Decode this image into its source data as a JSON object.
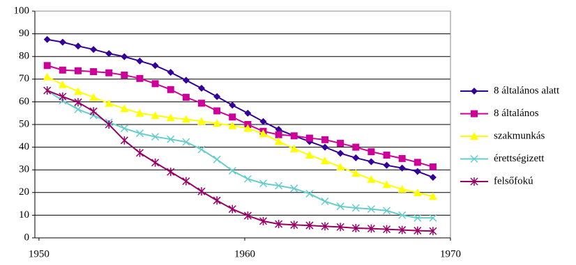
{
  "chart_data": {
    "type": "line",
    "x": [
      1950.4,
      1951.15,
      1951.9,
      1952.65,
      1953.4,
      1954.15,
      1954.9,
      1955.65,
      1956.4,
      1957.15,
      1957.9,
      1958.65,
      1959.4,
      1960.15,
      1960.9,
      1961.65,
      1962.4,
      1963.15,
      1963.9,
      1964.65,
      1965.4,
      1966.15,
      1966.9,
      1967.65,
      1968.4,
      1969.15
    ],
    "xlim": [
      1949.8,
      1970
    ],
    "xticks": [
      1950,
      1960,
      1970
    ],
    "ylim": [
      0,
      100
    ],
    "yticks": [
      0,
      10,
      20,
      30,
      40,
      50,
      60,
      70,
      80,
      90,
      100
    ],
    "grid": true,
    "legend": "right",
    "series": [
      {
        "name": "8 általános alatt",
        "color": "#330099",
        "marker": "diamond",
        "values": [
          87.5,
          86.3,
          84.6,
          83.1,
          81.3,
          79.9,
          78,
          76,
          73,
          69.5,
          66,
          62.3,
          58.5,
          55,
          51.3,
          47.8,
          45,
          42.5,
          40,
          37.3,
          35.3,
          33.6,
          32,
          30.8,
          29.3,
          26.7
        ]
      },
      {
        "name": "8 általános",
        "color": "#cc0099",
        "marker": "square",
        "values": [
          76,
          74,
          73.7,
          73.3,
          72.8,
          71.8,
          70.3,
          68,
          65.4,
          62,
          59.4,
          56,
          53.3,
          50,
          47,
          45.5,
          45,
          44,
          43.3,
          41.7,
          40,
          38,
          36.5,
          35,
          33.3,
          31.3
        ]
      },
      {
        "name": "szakmunkás",
        "color": "#ffff00",
        "marker": "triangle",
        "values": [
          71,
          67.6,
          64.6,
          62,
          59.3,
          57,
          55,
          54,
          53,
          52.3,
          51.4,
          50.5,
          49.5,
          48.3,
          46,
          42.5,
          39.3,
          36.5,
          34,
          31.3,
          28.5,
          25.8,
          23.5,
          21.5,
          19.9,
          18.3
        ]
      },
      {
        "name": "érettségizett",
        "color": "#66cccc",
        "marker": "x",
        "values": [
          65,
          60.5,
          56.7,
          54,
          51,
          48.3,
          46.1,
          44.6,
          43.5,
          42.3,
          39,
          34.6,
          29.6,
          26,
          24,
          23,
          21.8,
          19.5,
          16.1,
          13.9,
          13.2,
          12.7,
          12,
          10,
          8.8,
          8.8
        ]
      },
      {
        "name": "felsőfokú",
        "color": "#990066",
        "marker": "star",
        "values": [
          65,
          62.3,
          59.8,
          55.8,
          50,
          43,
          37.5,
          33.2,
          29.1,
          25,
          20.5,
          16.5,
          12.7,
          9.8,
          7.4,
          6.1,
          5.7,
          5.5,
          5.1,
          4.8,
          4.3,
          4.1,
          3.8,
          3.5,
          3.2,
          3
        ]
      }
    ]
  }
}
